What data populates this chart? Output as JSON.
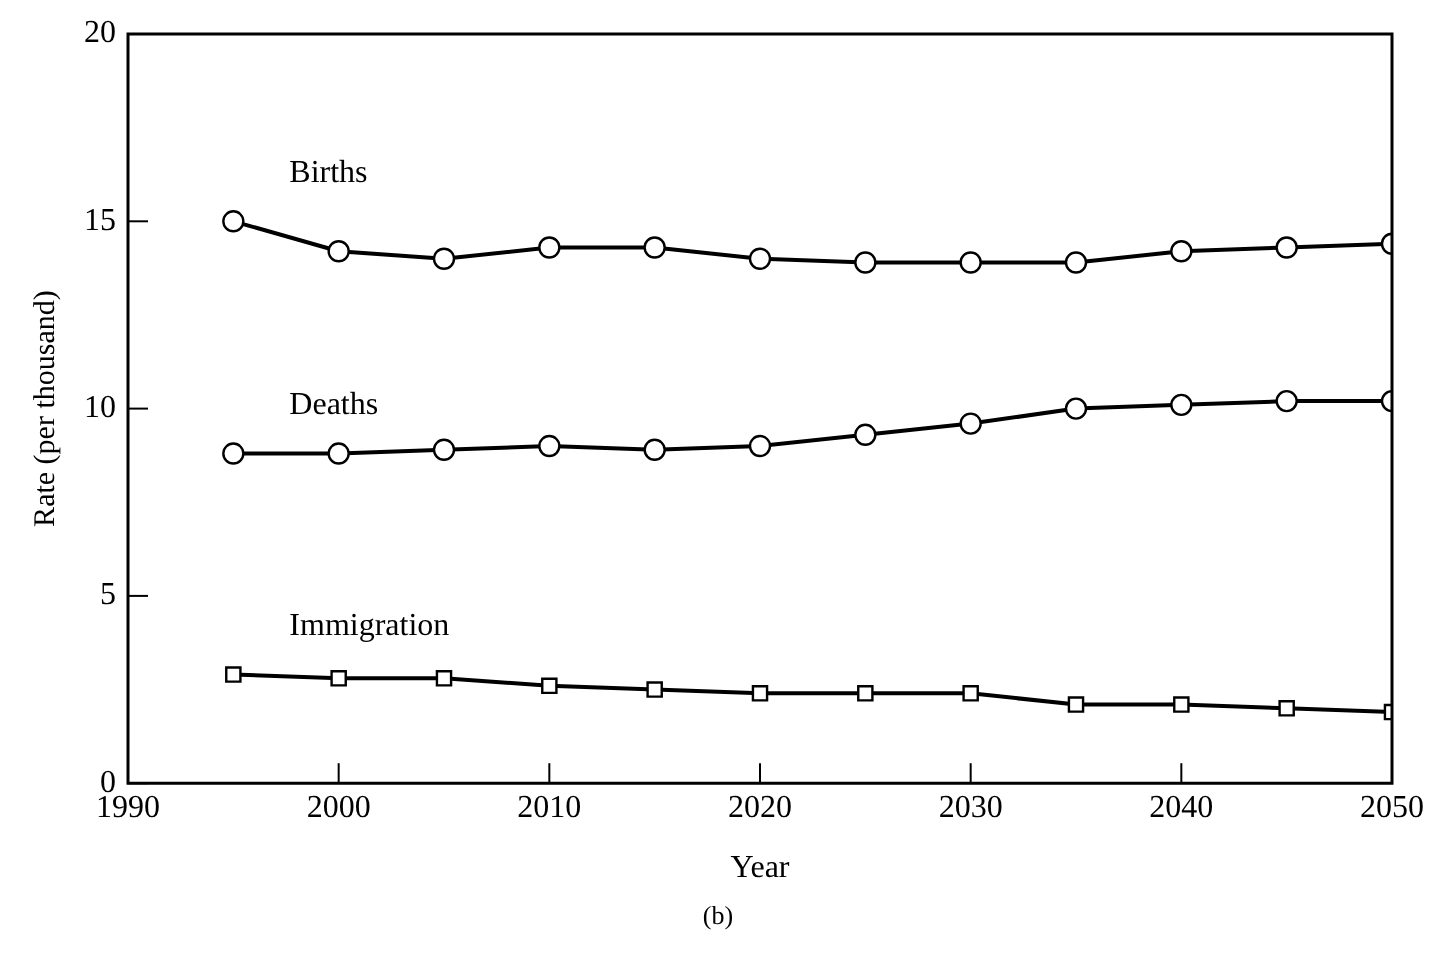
{
  "chart_data": {
    "type": "line",
    "xlabel": "Year",
    "ylabel": "Rate (per thousand)",
    "x": [
      1995,
      2000,
      2005,
      2010,
      2015,
      2020,
      2025,
      2030,
      2035,
      2040,
      2045,
      2050
    ],
    "series": [
      {
        "name": "Births",
        "color": "#000000",
        "marker": "circle",
        "values": [
          15.0,
          14.2,
          14.0,
          14.3,
          14.3,
          14.0,
          13.9,
          13.9,
          13.9,
          14.2,
          14.3,
          14.4
        ]
      },
      {
        "name": "Deaths",
        "color": "#000000",
        "marker": "circle",
        "values": [
          8.8,
          8.8,
          8.9,
          9.0,
          8.9,
          9.0,
          9.3,
          9.6,
          10.0,
          10.1,
          10.2,
          10.2
        ]
      },
      {
        "name": "Immigration",
        "color": "#000000",
        "marker": "square",
        "values": [
          2.9,
          2.8,
          2.8,
          2.6,
          2.5,
          2.4,
          2.4,
          2.4,
          2.1,
          2.1,
          2.0,
          1.9
        ]
      }
    ],
    "xlim": [
      1990,
      2050
    ],
    "xticks": [
      1990,
      2000,
      2010,
      2020,
      2030,
      2040,
      2050
    ],
    "ylim": [
      0,
      20
    ],
    "yticks": [
      0,
      5,
      10,
      15,
      20
    ],
    "grid": false,
    "legend": false,
    "line_style": "solid",
    "annotations": [
      "(b)"
    ]
  }
}
